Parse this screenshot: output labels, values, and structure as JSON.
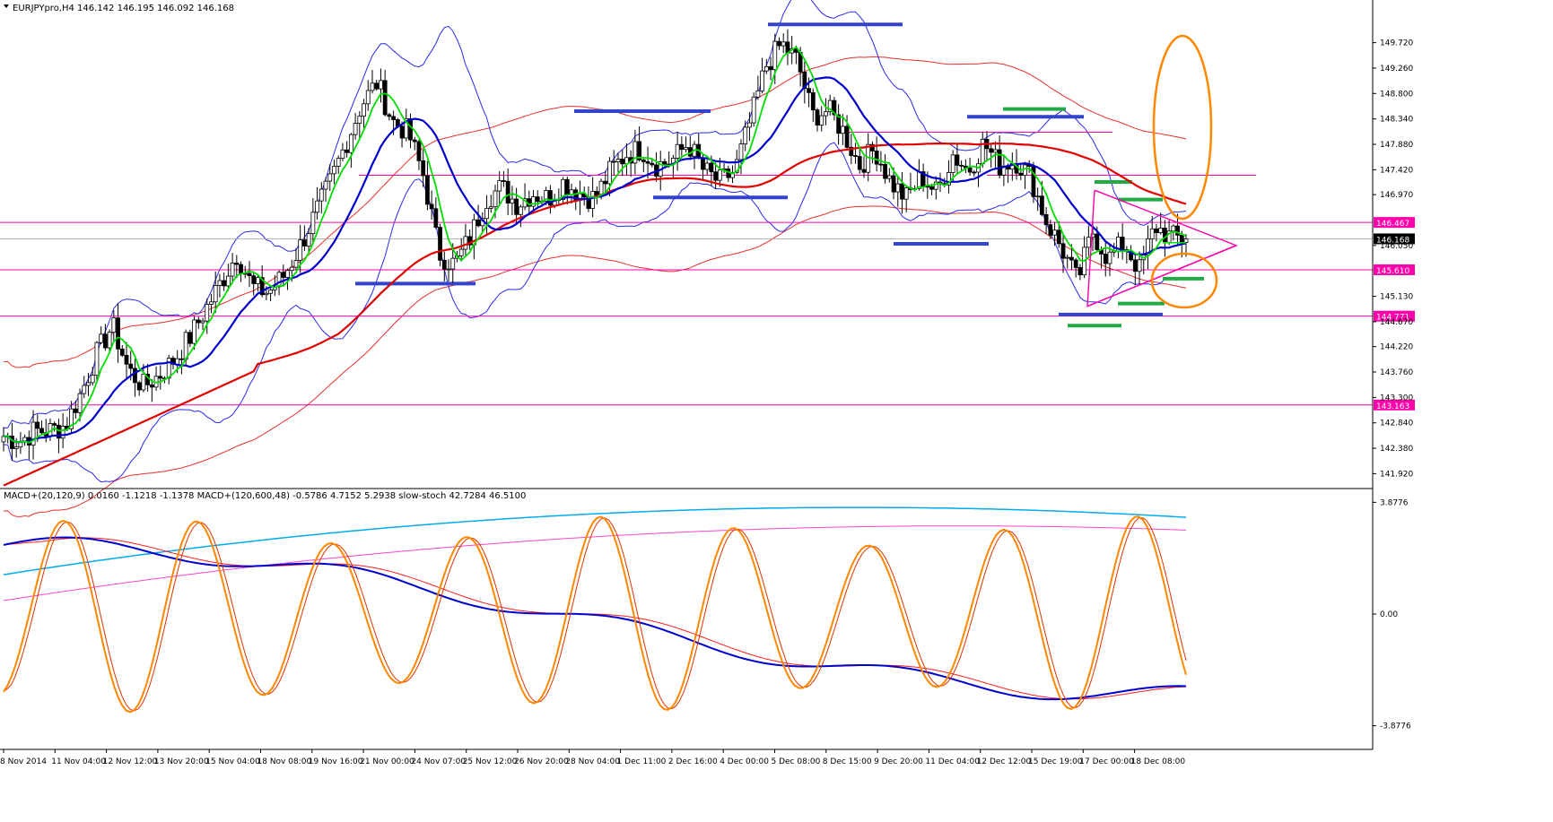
{
  "header": {
    "symbol_line": "EURJPYpro,H4  146.142 146.195 146.092 146.168",
    "indicator_line": "MACD+(20,120,9) 0.0160 -1.1218 -1.1378   MACD+(120,600,48) -0.5786 4.7152 5.2938   slow-stoch 42.7284 46.5100"
  },
  "colors": {
    "background": "#ffffff",
    "axis": "#000000",
    "candle_up": "#ffffff",
    "candle_down": "#000000",
    "ma_fast": "#00dd00",
    "ma_mid": "#0000cc",
    "ma_slow": "#e00000",
    "bollinger": "#2a2aee",
    "envelope": "#e83030",
    "level_line": "#ff00aa",
    "support_marks": "#3344cc",
    "green_marks": "#22aa44",
    "highlight": "#ff8800",
    "macd_fast": "#0000cc",
    "macd_signal": "#ff2020",
    "macd_slow": "#00aaee",
    "macd_slow_signal": "#ff44cc",
    "stoch_main": "#ff8800",
    "stoch_signal": "#dd3300"
  },
  "chart_data": [
    {
      "type": "candlestick",
      "panel": "price",
      "title": "EURJPYpro,H4",
      "ylim": [
        141.7,
        150.2
      ],
      "ytick_labels": [
        "149.720",
        "149.260",
        "148.800",
        "148.340",
        "147.880",
        "147.420",
        "146.970",
        "146.050",
        "145.130",
        "144.670",
        "144.220",
        "143.760",
        "143.300",
        "142.840",
        "142.380",
        "141.920"
      ],
      "ytick_values": [
        149.72,
        149.26,
        148.8,
        148.34,
        147.88,
        147.42,
        146.97,
        146.05,
        145.13,
        144.67,
        144.22,
        143.76,
        143.3,
        142.84,
        142.38,
        141.92
      ],
      "xtick_labels": [
        "8 Nov 2014",
        "11 Nov 04:00",
        "12 Nov 12:00",
        "13 Nov 20:00",
        "15 Nov 04:00",
        "18 Nov 08:00",
        "19 Nov 16:00",
        "21 Nov 00:00",
        "24 Nov 07:00",
        "25 Nov 12:00",
        "26 Nov 20:00",
        "28 Nov 04:00",
        "1 Dec 11:00",
        "2 Dec 16:00",
        "4 Dec 00:00",
        "5 Dec 08:00",
        "8 Dec 15:00",
        "9 Dec 20:00",
        "11 Dec 04:00",
        "12 Dec 12:00",
        "15 Dec 19:00",
        "17 Dec 00:00",
        "18 Dec 08:00"
      ],
      "close_path": [
        142.6,
        142.5,
        142.7,
        142.7,
        142.8,
        143.4,
        144.1,
        144.6,
        143.8,
        143.5,
        143.7,
        144.0,
        144.4,
        144.9,
        145.4,
        145.9,
        145.3,
        145.2,
        145.5,
        146.0,
        146.6,
        147.2,
        147.9,
        148.6,
        149.0,
        148.3,
        148.1,
        147.3,
        145.9,
        145.7,
        146.2,
        146.9,
        147.1,
        146.8,
        147.0,
        146.9,
        147.2,
        147.0,
        146.9,
        147.4,
        147.7,
        147.8,
        147.5,
        147.6,
        147.9,
        147.4,
        147.2,
        147.4,
        148.3,
        149.3,
        149.7,
        149.4,
        148.4,
        148.5,
        148.1,
        147.5,
        147.8,
        147.2,
        146.9,
        147.3,
        147.0,
        147.7,
        147.4,
        147.9,
        147.5,
        147.6,
        147.3,
        146.5,
        146.0,
        145.4,
        146.3,
        145.8,
        146.1,
        145.6,
        146.4,
        146.2,
        146.17
      ],
      "last_price_label": "146.168",
      "levels": [
        {
          "label": "146.467",
          "value": 146.467
        },
        {
          "label": "145.610",
          "value": 145.61
        },
        {
          "label": "144.771",
          "value": 144.771
        },
        {
          "label": "143.163",
          "value": 143.163
        }
      ],
      "series": [
        {
          "key": "ma_fast"
        },
        {
          "key": "ma_mid"
        },
        {
          "key": "ma_slow"
        },
        {
          "key": "bollinger_upper"
        },
        {
          "key": "bollinger_lower"
        },
        {
          "key": "envelope_upper"
        },
        {
          "key": "envelope_lower"
        }
      ]
    },
    {
      "type": "line",
      "panel": "oscillator",
      "ytick_labels": [
        "3.8776",
        "0.00",
        "-3.8776"
      ],
      "ytick_values": [
        3.8776,
        0,
        -3.8776
      ],
      "ylim": [
        -4.2,
        4.2
      ],
      "series": [
        {
          "key": "macd_fast"
        },
        {
          "key": "macd_signal"
        },
        {
          "key": "macd_slow"
        },
        {
          "key": "macd_slow_signal"
        },
        {
          "key": "stoch_main"
        },
        {
          "key": "stoch_signal"
        }
      ]
    }
  ]
}
